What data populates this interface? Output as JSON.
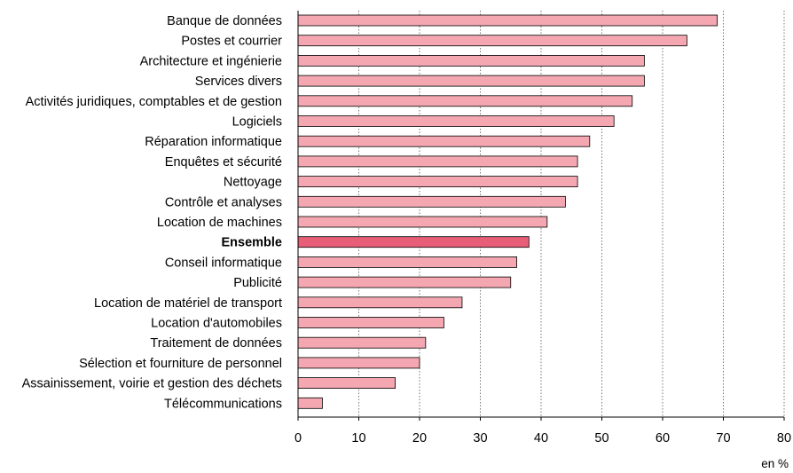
{
  "chart_data": {
    "type": "bar",
    "orientation": "horizontal",
    "categories": [
      "Banque de données",
      "Postes et courrier",
      "Architecture et ingénierie",
      "Services divers",
      "Activités juridiques, comptables et de gestion",
      "Logiciels",
      "Réparation informatique",
      "Enquêtes et sécurité",
      "Nettoyage",
      "Contrôle et analyses",
      "Location de machines",
      "Ensemble",
      "Conseil informatique",
      "Publicité",
      "Location de matériel de transport",
      "Location d'automobiles",
      "Traitement de données",
      "Sélection et fourniture de personnel",
      "Assainissement, voirie et gestion des déchets",
      "Télécommunications"
    ],
    "values": [
      69,
      64,
      57,
      57,
      55,
      52,
      48,
      46,
      46,
      44,
      41,
      38,
      36,
      35,
      27,
      24,
      21,
      20,
      16,
      4
    ],
    "highlight_category": "Ensemble",
    "xlim": [
      0,
      80
    ],
    "xticks": [
      0,
      10,
      20,
      30,
      40,
      50,
      60,
      70,
      80
    ],
    "xlabel": "en %",
    "grid": "vertical dotted",
    "colors": {
      "bar": "#f4a7b1",
      "highlight": "#e85d78"
    }
  }
}
